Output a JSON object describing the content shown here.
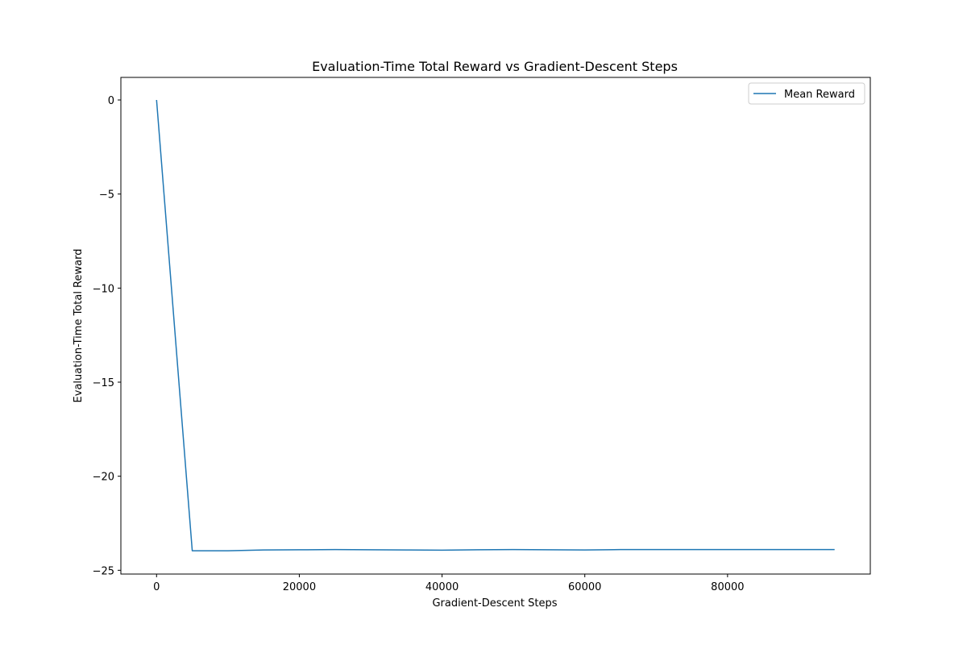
{
  "chart_data": {
    "type": "line",
    "title": "Evaluation-Time Total Reward vs Gradient-Descent Steps",
    "xlabel": "Gradient-Descent Steps",
    "ylabel": "Evaluation-Time Total Reward",
    "xlim": [
      -5000,
      100000
    ],
    "ylim": [
      -25.2,
      1.2
    ],
    "xticks": [
      0,
      20000,
      40000,
      60000,
      80000
    ],
    "yticks": [
      0,
      -5,
      -10,
      -15,
      -20,
      -25
    ],
    "xtick_labels": [
      "0",
      "20000",
      "40000",
      "60000",
      "80000"
    ],
    "ytick_labels": [
      "0",
      "−5",
      "−10",
      "−15",
      "−20",
      "−25"
    ],
    "grid": false,
    "legend": {
      "position": "top-right",
      "entries": [
        "Mean Reward"
      ]
    },
    "series": [
      {
        "name": "Mean Reward",
        "color": "#1f77b4",
        "x": [
          0,
          5000,
          10000,
          15000,
          20000,
          25000,
          30000,
          35000,
          40000,
          45000,
          50000,
          55000,
          60000,
          65000,
          70000,
          75000,
          80000,
          85000,
          90000,
          95000
        ],
        "y": [
          0,
          -23.96,
          -23.96,
          -23.92,
          -23.91,
          -23.9,
          -23.91,
          -23.92,
          -23.93,
          -23.91,
          -23.9,
          -23.91,
          -23.92,
          -23.9,
          -23.9,
          -23.9,
          -23.9,
          -23.9,
          -23.9,
          -23.9
        ]
      }
    ]
  }
}
